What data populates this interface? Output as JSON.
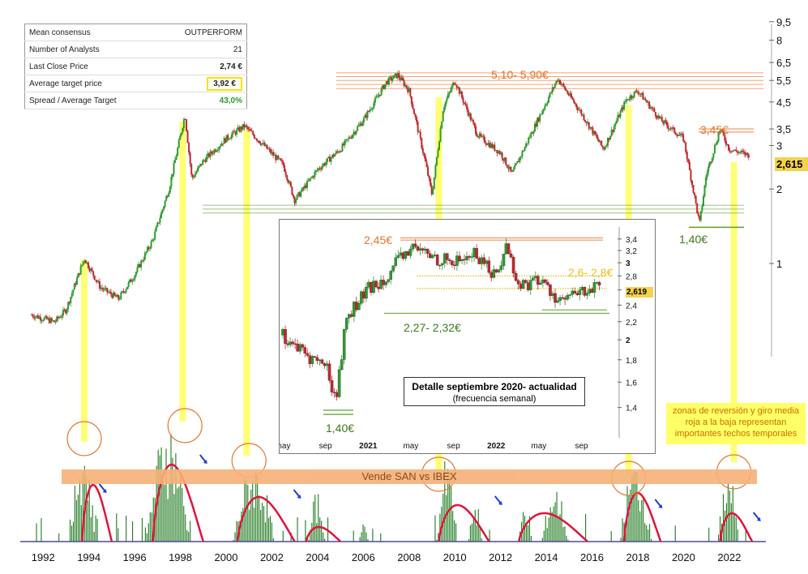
{
  "table": {
    "rows": [
      {
        "label": "Mean consensus",
        "value": "OUTPERFORM"
      },
      {
        "label": "Number of Analysts",
        "value": "21"
      },
      {
        "label": "Last Close Price",
        "value": "2,74 €"
      },
      {
        "label": "Average target price",
        "value": "3,92 €"
      },
      {
        "label": "Spread / Average Target",
        "value": "43,0%"
      }
    ]
  },
  "labels": {
    "resistance_main": "5,10- 5,90€",
    "resistance_recent": "3,45€",
    "support_main": "1,40€",
    "current_price": "2,615",
    "inset_resistance": "2,45€",
    "inset_range": "2,6- 2,8€",
    "inset_support": "2,27- 2,32€",
    "inset_low": "1,40€",
    "inset_current": "2,619",
    "inset_title": "Detalle septiembre 2020- actualidad",
    "inset_subtitle": "(frecuencia semanal)",
    "note": "zonas de reversión y giro media roja a la baja representan importantes techos temporales",
    "sell_band": "Vende SAN vs IBEX"
  },
  "colors": {
    "bull": "#2e9b2e",
    "bear": "#c0282e",
    "highlight": "#ffff66",
    "resistance": "#f08040",
    "support": "#5aa02c",
    "oscillator_bar": "#1e7a1e",
    "oscillator_line": "#e0143c"
  },
  "chart_data": [
    {
      "type": "line",
      "scale": "log",
      "x_ticks": [
        "1992",
        "1994",
        "1996",
        "1998",
        "2000",
        "2002",
        "2004",
        "2006",
        "2008",
        "2010",
        "2012",
        "2014",
        "2016",
        "2018",
        "2020",
        "2022"
      ],
      "y_ticks": [
        "9,5",
        "8",
        "6,5",
        "5,5",
        "4,5",
        "3,5",
        "3",
        "2",
        "1"
      ],
      "series": [
        {
          "x": [
            1991.5,
            1992.5,
            1993.0,
            1993.8,
            1994.5,
            1995.3,
            1996.0,
            1996.8,
            1997.5,
            1998.2,
            1998.5,
            1999.0,
            2000.0,
            2000.8,
            2001.5,
            2002.5,
            2003.0,
            2004.0,
            2005.0,
            2006.0,
            2007.0,
            2007.5,
            2008.0,
            2008.7,
            2009.0,
            2009.5,
            2010.0,
            2011.0,
            2012.0,
            2012.5,
            2013.5,
            2014.5,
            2015.5,
            2016.5,
            2017.5,
            2018.0,
            2019.0,
            2020.0,
            2020.7,
            2021.0,
            2021.6,
            2022.0,
            2022.8
          ],
          "y": [
            0.62,
            0.58,
            0.65,
            1.05,
            0.8,
            0.72,
            0.9,
            1.25,
            2.0,
            4.0,
            2.2,
            2.6,
            3.2,
            3.6,
            3.1,
            2.5,
            1.8,
            2.4,
            2.9,
            3.8,
            5.4,
            5.8,
            5.0,
            2.6,
            1.9,
            4.3,
            5.5,
            3.3,
            2.8,
            2.3,
            3.6,
            5.6,
            4.1,
            2.9,
            4.6,
            5.0,
            3.8,
            3.2,
            1.45,
            2.3,
            3.5,
            2.9,
            2.75
          ]
        }
      ]
    },
    {
      "type": "line",
      "title": "Detalle septiembre 2020- actualidad",
      "x_ticks": [
        "may",
        "sep",
        "2021",
        "may",
        "sep",
        "2022",
        "may",
        "sep"
      ],
      "y_ticks": [
        "3,4",
        "3,2",
        "3",
        "2,8",
        "2,6",
        "2,4",
        "2,2",
        "2",
        "1,8",
        "1,6",
        "1,4"
      ],
      "series": [
        {
          "x": [
            "2020-05",
            "2020-07",
            "2020-09",
            "2020-10",
            "2020-11",
            "2021-01",
            "2021-03",
            "2021-05",
            "2021-07",
            "2021-09",
            "2021-11",
            "2022-01",
            "2022-02",
            "2022-03",
            "2022-05",
            "2022-07",
            "2022-08",
            "2022-10"
          ],
          "y": [
            2.05,
            1.85,
            1.75,
            1.45,
            2.25,
            2.6,
            2.85,
            3.25,
            3.1,
            3.0,
            3.15,
            2.8,
            3.3,
            2.65,
            2.75,
            2.45,
            2.5,
            2.62
          ]
        }
      ]
    }
  ]
}
